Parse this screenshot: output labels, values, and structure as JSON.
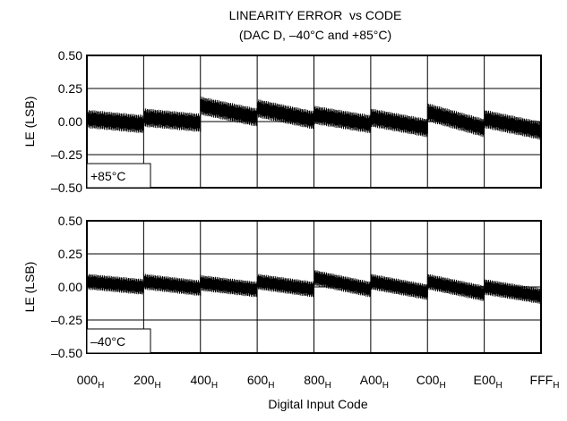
{
  "chart_data": {
    "type": "line",
    "title": "LINEARITY ERROR  vs CODE",
    "subtitle": "(DAC D, –40°C and +85°C)",
    "xlabel": "Digital Input Code",
    "x_ticks": [
      {
        "main": "000",
        "sub": "H"
      },
      {
        "main": "200",
        "sub": "H"
      },
      {
        "main": "400",
        "sub": "H"
      },
      {
        "main": "600",
        "sub": "H"
      },
      {
        "main": "800",
        "sub": "H"
      },
      {
        "main": "A00",
        "sub": "H"
      },
      {
        "main": "C00",
        "sub": "H"
      },
      {
        "main": "E00",
        "sub": "H"
      },
      {
        "main": "FFF",
        "sub": "H"
      }
    ],
    "xlim": [
      0,
      4095
    ],
    "grid": true,
    "panels": [
      {
        "label": "+85°C",
        "ylabel": "LE (LSB)",
        "ylim": [
          -0.5,
          0.5
        ],
        "y_ticks": [
          "0.50",
          "0.25",
          "0.00",
          "–0.25",
          "–0.50"
        ],
        "segment_profile": [
          {
            "x": [
              0,
              512
            ],
            "y_start": 0.02,
            "y_end": -0.02
          },
          {
            "x": [
              512,
              1024
            ],
            "y_start": 0.03,
            "y_end": -0.01
          },
          {
            "x": [
              1024,
              1536
            ],
            "y_start": 0.12,
            "y_end": 0.03
          },
          {
            "x": [
              1536,
              2048
            ],
            "y_start": 0.1,
            "y_end": 0.01
          },
          {
            "x": [
              2048,
              2560
            ],
            "y_start": 0.05,
            "y_end": -0.02
          },
          {
            "x": [
              2560,
              3072
            ],
            "y_start": 0.03,
            "y_end": -0.05
          },
          {
            "x": [
              3072,
              3584
            ],
            "y_start": 0.07,
            "y_end": -0.05
          },
          {
            "x": [
              3584,
              4095
            ],
            "y_start": 0.02,
            "y_end": -0.07
          }
        ],
        "ripple_amplitude": 0.07
      },
      {
        "label": "–40°C",
        "ylabel": "LE (LSB)",
        "ylim": [
          -0.5,
          0.5
        ],
        "y_ticks": [
          "0.50",
          "0.25",
          "0.00",
          "–0.25",
          "–0.50"
        ],
        "segment_profile": [
          {
            "x": [
              0,
              512
            ],
            "y_start": 0.04,
            "y_end": 0.0
          },
          {
            "x": [
              512,
              1024
            ],
            "y_start": 0.04,
            "y_end": -0.01
          },
          {
            "x": [
              1024,
              1536
            ],
            "y_start": 0.03,
            "y_end": -0.02
          },
          {
            "x": [
              1536,
              2048
            ],
            "y_start": 0.04,
            "y_end": -0.02
          },
          {
            "x": [
              2048,
              2560
            ],
            "y_start": 0.07,
            "y_end": -0.02
          },
          {
            "x": [
              2560,
              3072
            ],
            "y_start": 0.04,
            "y_end": -0.04
          },
          {
            "x": [
              3072,
              3584
            ],
            "y_start": 0.04,
            "y_end": -0.05
          },
          {
            "x": [
              3584,
              4095
            ],
            "y_start": 0.0,
            "y_end": -0.07
          }
        ],
        "ripple_amplitude": 0.06
      }
    ]
  }
}
